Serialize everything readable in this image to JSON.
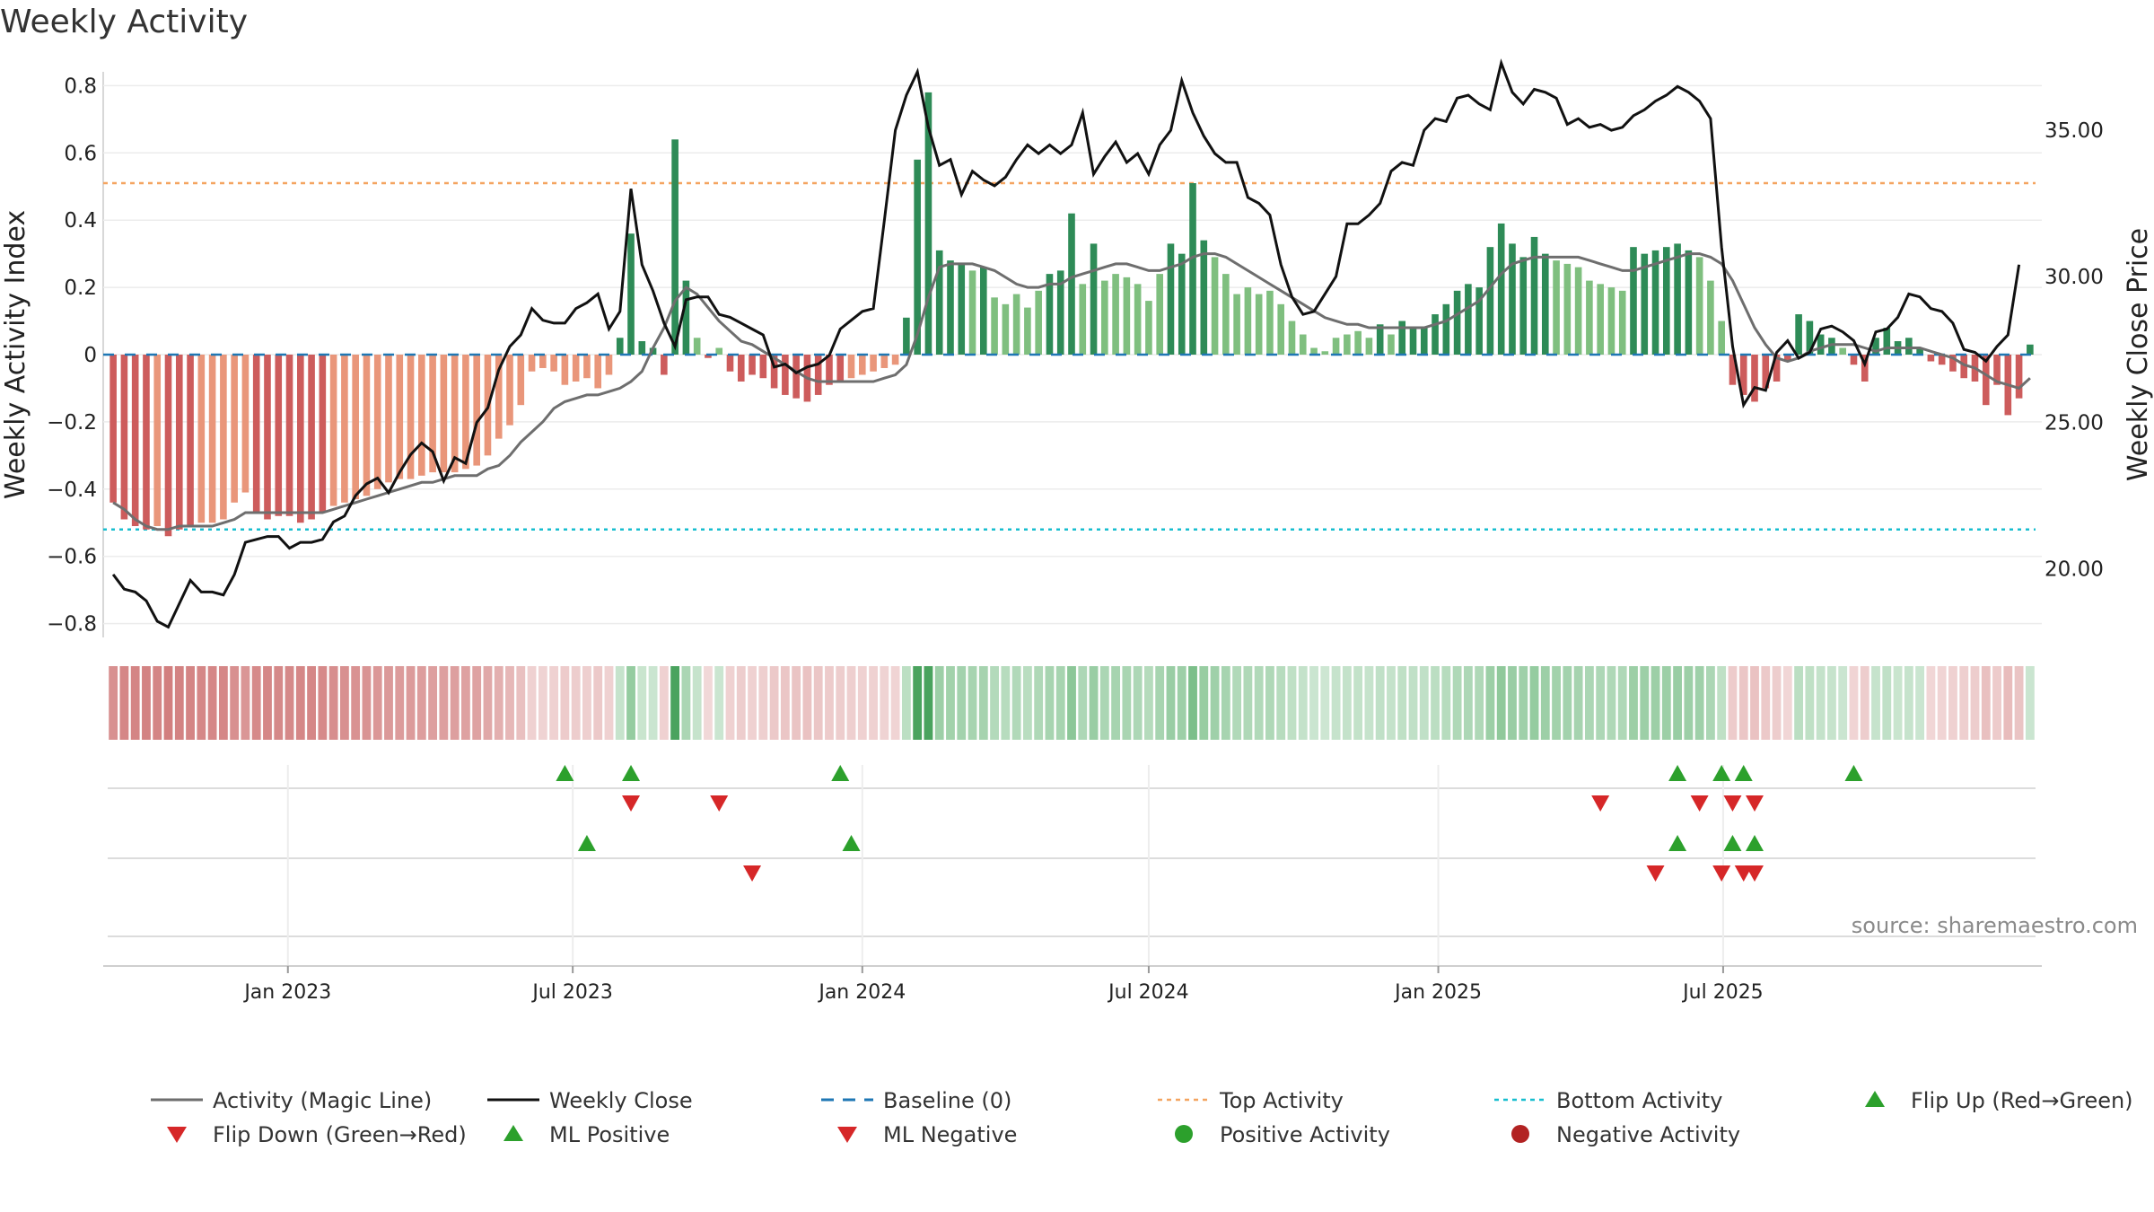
{
  "title": "Weekly Activity",
  "source_text": "source: sharemaestro.com",
  "colors": {
    "strong_green": "#2e8b57",
    "light_green": "#7fbf7f",
    "strong_red": "#cd5c5c",
    "light_red": "#e9967a",
    "magic_line": "#6e6e6e",
    "close_line": "#111111",
    "baseline": "#1f77b4",
    "top_activity": "#f4a460",
    "bottom_activity": "#17becf",
    "flip_up": "#2ca02c",
    "flip_down": "#d62728"
  },
  "legend": [
    {
      "label": "Activity (Magic Line)",
      "icon": "solid-line-icon",
      "color": "#6e6e6e"
    },
    {
      "label": "Weekly Close",
      "icon": "solid-line-icon",
      "color": "#111111"
    },
    {
      "label": "Baseline (0)",
      "icon": "dashed-line-icon",
      "color": "#1f77b4"
    },
    {
      "label": "Top Activity",
      "icon": "dotted-line-icon",
      "color": "#f4a460"
    },
    {
      "label": "Bottom Activity",
      "icon": "dotted-line-icon",
      "color": "#17becf"
    },
    {
      "label": "Flip Up (Red→Green)",
      "icon": "triangle-up-icon",
      "color": "#2ca02c"
    },
    {
      "label": "Flip Down (Green→Red)",
      "icon": "triangle-down-icon",
      "color": "#d62728"
    },
    {
      "label": "ML Positive",
      "icon": "triangle-up-icon",
      "color": "#2ca02c"
    },
    {
      "label": "ML Negative",
      "icon": "triangle-down-icon",
      "color": "#d62728"
    },
    {
      "label": "Positive Activity",
      "icon": "circle-icon",
      "color": "#2ca02c"
    },
    {
      "label": "Negative Activity",
      "icon": "circle-icon",
      "color": "#b22222"
    }
  ],
  "chart_data": {
    "type": "bar",
    "title": "Weekly Activity",
    "ylabel_left": "Weekly Activity Index",
    "ylabel_right": "Weekly Close Price",
    "ylim_left": [
      -0.85,
      0.8
    ],
    "yticks_left": [
      "0.8",
      "0.6",
      "0.4",
      "0.2",
      "0",
      "−0.2",
      "−0.4",
      "−0.6",
      "−0.8"
    ],
    "ylim_right": [
      17.8,
      37.0
    ],
    "yticks_right": [
      "35.00",
      "30.00",
      "25.00",
      "20.00"
    ],
    "x_range": [
      "2022-09-12",
      "2025-09-22"
    ],
    "x_ticks": [
      "Jan 2023",
      "Jul 2023",
      "Jan 2024",
      "Jul 2024",
      "Jan 2025",
      "Jul 2025"
    ],
    "top_activity": 0.51,
    "bottom_activity": -0.52,
    "baseline": 0,
    "grid": true,
    "legend_position": "bottom",
    "start_week": "2022-09-12",
    "activity": [
      -0.44,
      -0.49,
      -0.51,
      -0.52,
      -0.51,
      -0.54,
      -0.52,
      -0.51,
      -0.5,
      -0.5,
      -0.49,
      -0.44,
      -0.41,
      -0.47,
      -0.49,
      -0.48,
      -0.48,
      -0.5,
      -0.49,
      -0.47,
      -0.45,
      -0.44,
      -0.43,
      -0.42,
      -0.4,
      -0.38,
      -0.37,
      -0.37,
      -0.36,
      -0.35,
      -0.35,
      -0.35,
      -0.34,
      -0.33,
      -0.3,
      -0.25,
      -0.21,
      -0.15,
      -0.05,
      -0.04,
      -0.05,
      -0.09,
      -0.08,
      -0.07,
      -0.1,
      -0.06,
      0.05,
      0.36,
      0.04,
      0.02,
      -0.06,
      0.64,
      0.22,
      0.05,
      -0.01,
      0.02,
      -0.05,
      -0.08,
      -0.06,
      -0.07,
      -0.1,
      -0.12,
      -0.13,
      -0.14,
      -0.12,
      -0.09,
      -0.08,
      -0.07,
      -0.06,
      -0.05,
      -0.04,
      -0.03,
      0.11,
      0.58,
      0.78,
      0.31,
      0.28,
      0.27,
      0.25,
      0.26,
      0.17,
      0.15,
      0.18,
      0.14,
      0.19,
      0.24,
      0.25,
      0.42,
      0.21,
      0.33,
      0.22,
      0.24,
      0.23,
      0.21,
      0.16,
      0.24,
      0.33,
      0.3,
      0.51,
      0.34,
      0.29,
      0.24,
      0.18,
      0.2,
      0.18,
      0.19,
      0.15,
      0.1,
      0.06,
      0.02,
      0.01,
      0.05,
      0.06,
      0.07,
      0.05,
      0.09,
      0.06,
      0.1,
      0.08,
      0.08,
      0.12,
      0.15,
      0.19,
      0.21,
      0.2,
      0.32,
      0.39,
      0.33,
      0.29,
      0.35,
      0.3,
      0.28,
      0.27,
      0.26,
      0.22,
      0.21,
      0.2,
      0.19,
      0.32,
      0.3,
      0.31,
      0.32,
      0.33,
      0.31,
      0.29,
      0.22,
      0.1,
      -0.09,
      -0.12,
      -0.14,
      -0.1,
      -0.08,
      -0.02,
      0.12,
      0.1,
      0.06,
      0.05,
      0.02,
      -0.03,
      -0.08,
      0.05,
      0.08,
      0.04,
      0.05,
      0.02,
      -0.02,
      -0.03,
      -0.05,
      -0.07,
      -0.08,
      -0.15,
      -0.09,
      -0.18,
      -0.13,
      0.03
    ],
    "magic_line": [
      -0.44,
      -0.46,
      -0.49,
      -0.51,
      -0.52,
      -0.52,
      -0.51,
      -0.51,
      -0.51,
      -0.51,
      -0.5,
      -0.49,
      -0.47,
      -0.47,
      -0.47,
      -0.47,
      -0.47,
      -0.47,
      -0.47,
      -0.47,
      -0.46,
      -0.45,
      -0.44,
      -0.43,
      -0.42,
      -0.41,
      -0.4,
      -0.39,
      -0.38,
      -0.38,
      -0.37,
      -0.36,
      -0.36,
      -0.36,
      -0.34,
      -0.33,
      -0.3,
      -0.26,
      -0.23,
      -0.2,
      -0.16,
      -0.14,
      -0.13,
      -0.12,
      -0.12,
      -0.11,
      -0.1,
      -0.08,
      -0.05,
      0.02,
      0.08,
      0.16,
      0.2,
      0.18,
      0.14,
      0.1,
      0.07,
      0.04,
      0.03,
      0.01,
      -0.01,
      -0.03,
      -0.05,
      -0.07,
      -0.08,
      -0.08,
      -0.08,
      -0.08,
      -0.08,
      -0.08,
      -0.07,
      -0.06,
      -0.03,
      0.06,
      0.17,
      0.26,
      0.27,
      0.27,
      0.27,
      0.26,
      0.25,
      0.23,
      0.21,
      0.2,
      0.2,
      0.21,
      0.21,
      0.23,
      0.24,
      0.25,
      0.26,
      0.27,
      0.27,
      0.26,
      0.25,
      0.25,
      0.26,
      0.27,
      0.29,
      0.3,
      0.3,
      0.29,
      0.27,
      0.25,
      0.23,
      0.21,
      0.19,
      0.17,
      0.15,
      0.13,
      0.11,
      0.1,
      0.09,
      0.09,
      0.08,
      0.08,
      0.08,
      0.08,
      0.08,
      0.08,
      0.09,
      0.1,
      0.12,
      0.14,
      0.16,
      0.2,
      0.24,
      0.27,
      0.28,
      0.29,
      0.29,
      0.29,
      0.29,
      0.29,
      0.28,
      0.27,
      0.26,
      0.25,
      0.25,
      0.26,
      0.27,
      0.28,
      0.29,
      0.3,
      0.3,
      0.29,
      0.27,
      0.22,
      0.15,
      0.08,
      0.03,
      -0.01,
      -0.02,
      -0.01,
      0.01,
      0.02,
      0.03,
      0.03,
      0.03,
      0.02,
      0.01,
      0.02,
      0.02,
      0.02,
      0.02,
      0.01,
      0,
      -0.01,
      -0.03,
      -0.04,
      -0.06,
      -0.08,
      -0.09,
      -0.1,
      -0.07
    ],
    "weekly_close": [
      19.8,
      19.3,
      19.2,
      18.9,
      18.2,
      18.0,
      18.8,
      19.6,
      19.2,
      19.2,
      19.1,
      19.8,
      20.9,
      21.0,
      21.1,
      21.1,
      20.7,
      20.9,
      20.9,
      21.0,
      21.6,
      21.8,
      22.5,
      22.9,
      23.1,
      22.6,
      23.3,
      23.9,
      24.3,
      24.0,
      23.0,
      23.8,
      23.6,
      25.0,
      25.5,
      26.8,
      27.6,
      28.0,
      28.9,
      28.5,
      28.4,
      28.4,
      28.9,
      29.1,
      29.4,
      28.2,
      28.8,
      33.0,
      30.4,
      29.5,
      28.4,
      27.6,
      29.2,
      29.3,
      29.3,
      28.7,
      28.6,
      28.4,
      28.2,
      28.0,
      26.9,
      27.0,
      26.7,
      26.9,
      27.0,
      27.3,
      28.2,
      28.5,
      28.8,
      28.9,
      31.9,
      35.0,
      36.2,
      37.0,
      35.1,
      33.8,
      34.0,
      32.8,
      33.6,
      33.3,
      33.1,
      33.4,
      34.0,
      34.5,
      34.2,
      34.5,
      34.2,
      34.5,
      35.6,
      33.5,
      34.1,
      34.6,
      33.9,
      34.2,
      33.5,
      34.5,
      35.0,
      36.7,
      35.6,
      34.8,
      34.2,
      33.9,
      33.9,
      32.7,
      32.5,
      32.1,
      30.4,
      29.3,
      28.7,
      28.8,
      29.4,
      30.0,
      31.8,
      31.8,
      32.1,
      32.5,
      33.6,
      33.9,
      33.8,
      35.0,
      35.4,
      35.3,
      36.1,
      36.2,
      35.9,
      35.7,
      37.3,
      36.3,
      35.9,
      36.4,
      36.3,
      36.1,
      35.2,
      35.4,
      35.1,
      35.2,
      35.0,
      35.1,
      35.5,
      35.7,
      36.0,
      36.2,
      36.5,
      36.3,
      36.0,
      35.4,
      31.0,
      27.6,
      25.6,
      26.2,
      26.1,
      27.4,
      27.8,
      27.2,
      27.4,
      28.2,
      28.3,
      28.1,
      27.8,
      27.0,
      28.1,
      28.2,
      28.6,
      29.4,
      29.3,
      28.9,
      28.8,
      28.4,
      27.5,
      27.4,
      27.1,
      27.6,
      28.0,
      30.4
    ],
    "activity_band": "color band of weekly activity shades, one tile per week",
    "events": {
      "flip_up": [
        "2023-06-26",
        "2023-08-07",
        "2023-12-18",
        "2025-06-02",
        "2025-06-30",
        "2025-07-14",
        "2025-09-22"
      ],
      "flip_down": [
        "2023-08-07",
        "2023-10-02",
        "2025-04-14",
        "2025-06-16",
        "2025-07-07",
        "2025-07-21"
      ],
      "ml_positive": [
        "2023-07-10",
        "2023-12-25",
        "2025-06-02",
        "2025-07-07",
        "2025-07-21"
      ],
      "ml_negative": [
        "2023-10-23",
        "2025-05-19",
        "2025-06-30",
        "2025-07-14",
        "2025-07-21"
      ]
    }
  }
}
